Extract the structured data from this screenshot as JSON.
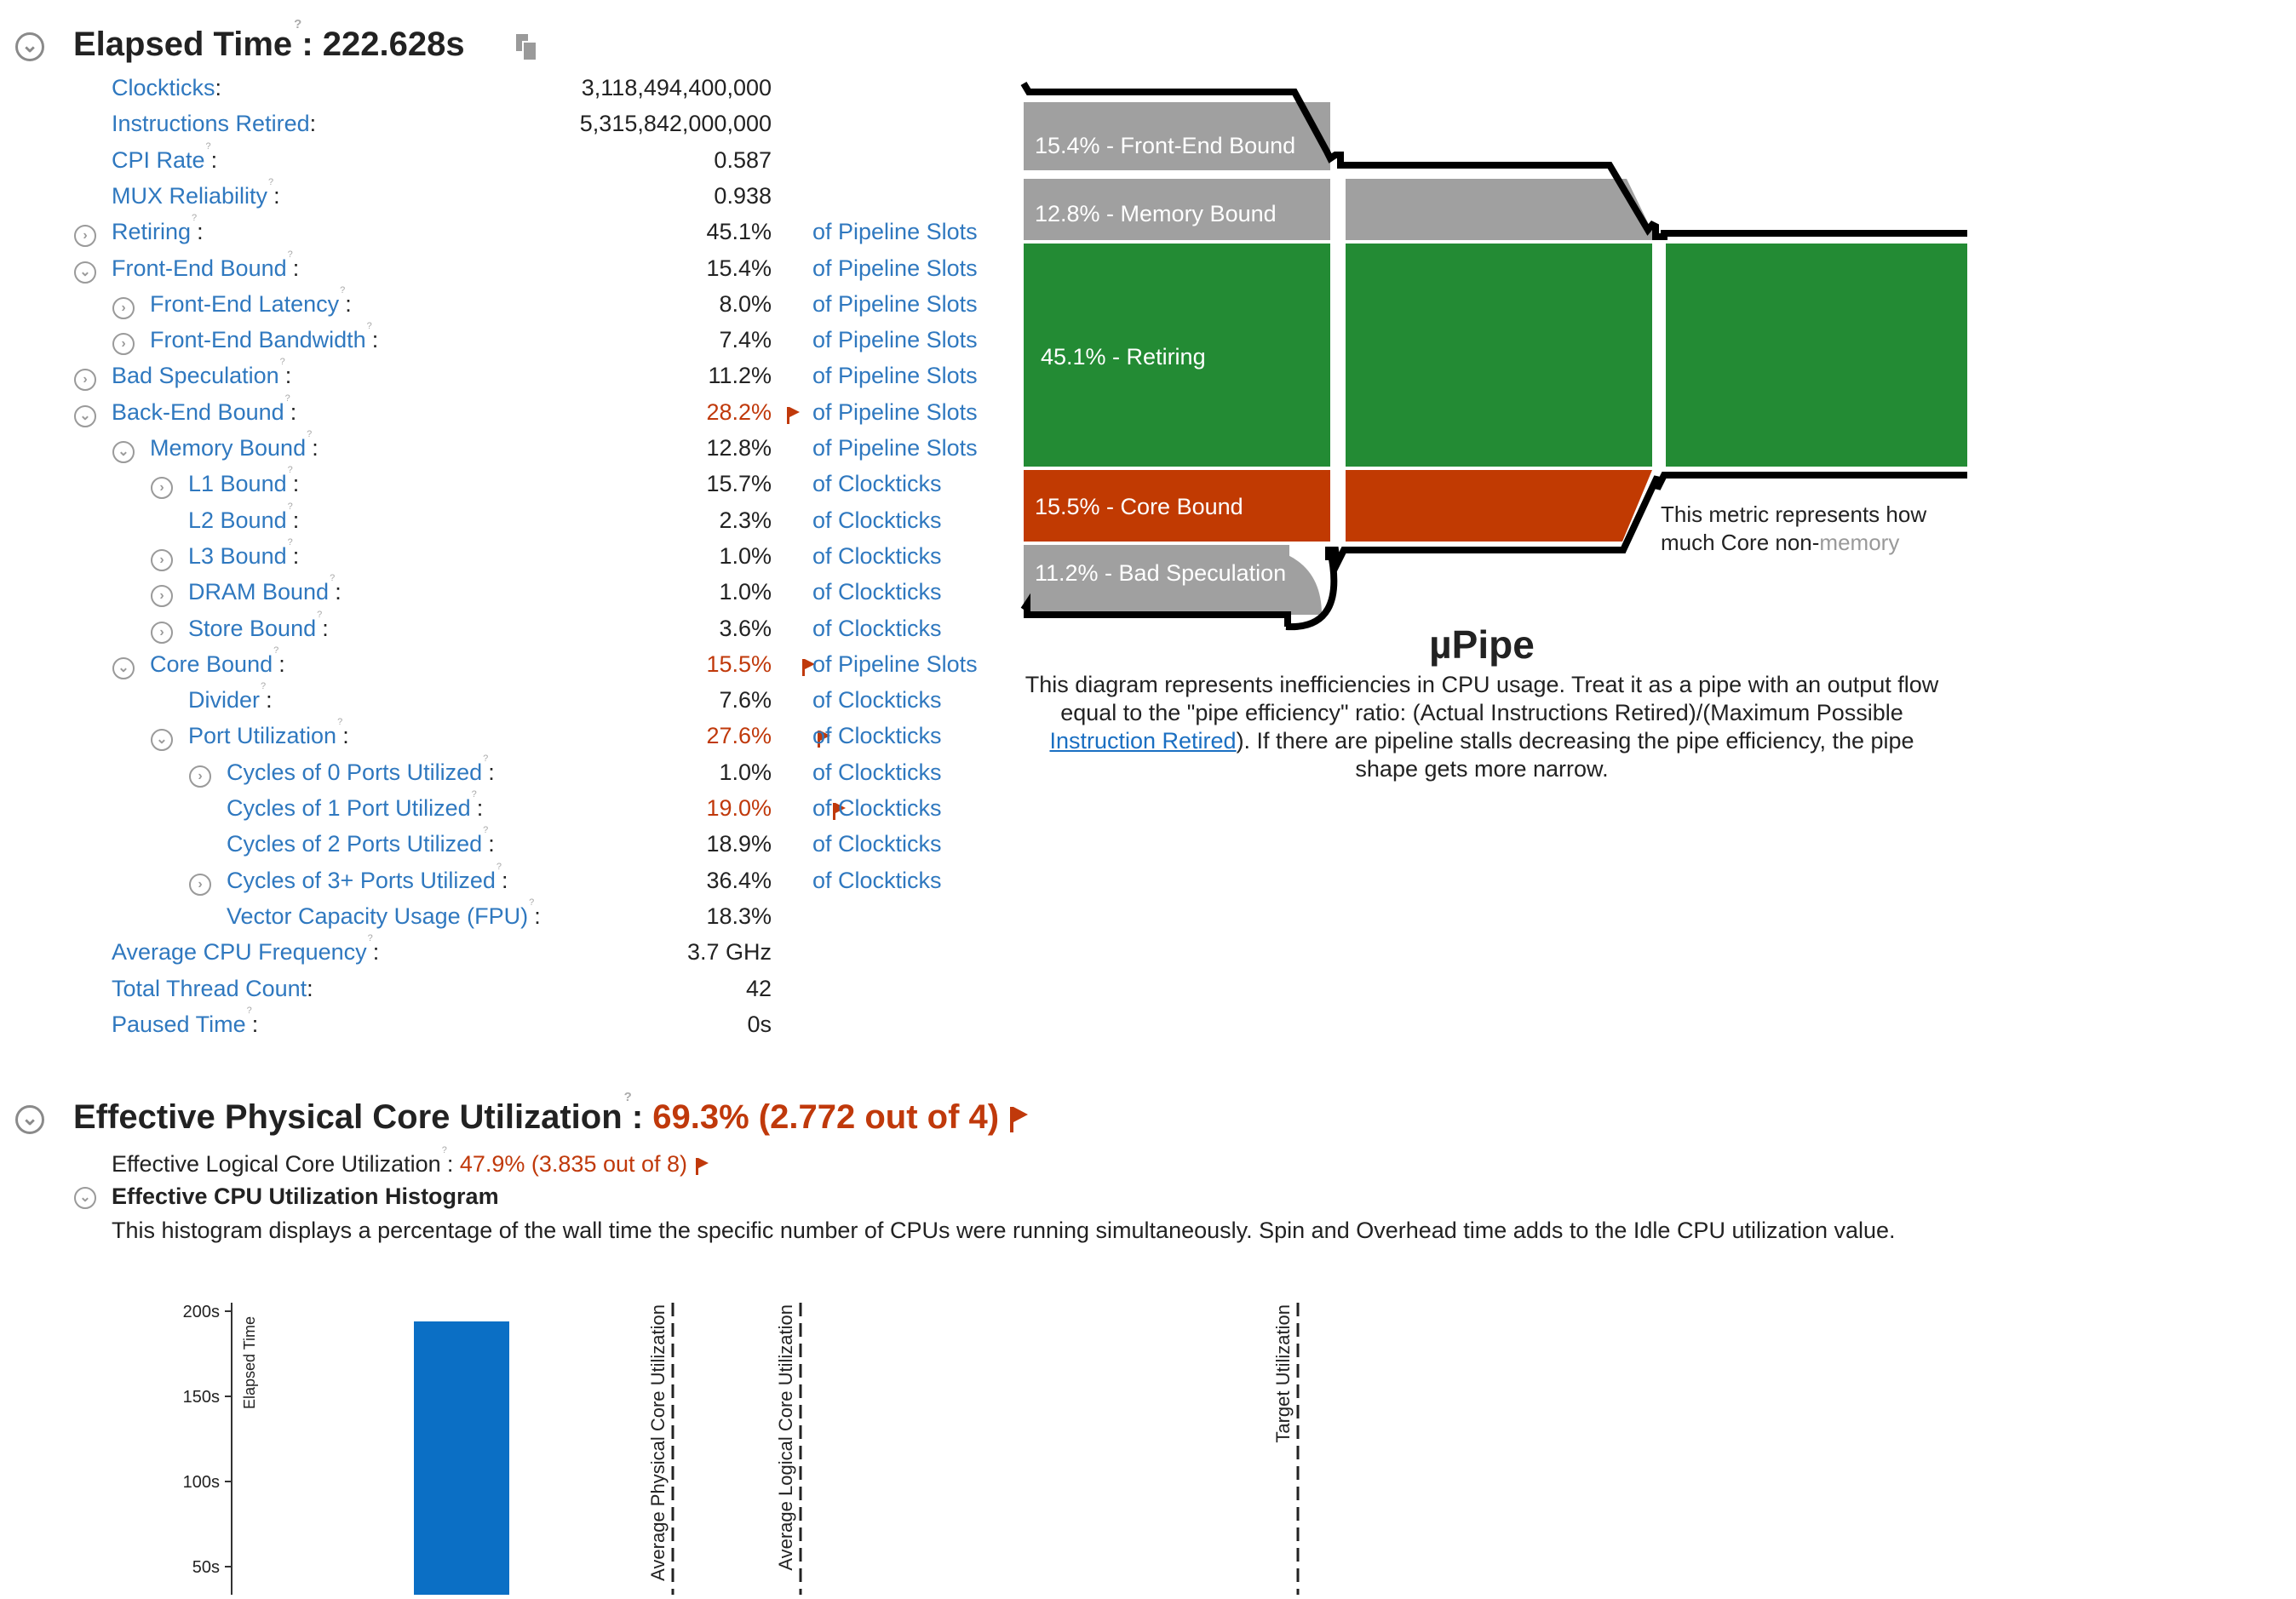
{
  "elapsed": {
    "title": "Elapsed Time",
    "sep": ":",
    "value": "222.628s",
    "hint": "?",
    "copy_icon": "copy-icon",
    "toggle": "chevron-down-icon"
  },
  "metrics": [
    {
      "label": "Clockticks",
      "value": "3,118,494,400,000",
      "unit": ""
    },
    {
      "label": "Instructions Retired",
      "value": "5,315,842,000,000",
      "unit": ""
    },
    {
      "label": "CPI Rate",
      "value": "0.587",
      "unit": ""
    },
    {
      "label": "MUX Reliability",
      "value": "0.938",
      "unit": ""
    },
    {
      "label": "Retiring",
      "value": "45.1%",
      "unit": "of Pipeline Slots"
    },
    {
      "label": "Front-End Bound",
      "value": "15.4%",
      "unit": "of Pipeline Slots"
    },
    {
      "label": "Front-End Latency",
      "value": "8.0%",
      "unit": "of Pipeline Slots"
    },
    {
      "label": "Front-End Bandwidth",
      "value": "7.4%",
      "unit": "of Pipeline Slots"
    },
    {
      "label": "Bad Speculation",
      "value": "11.2%",
      "unit": "of Pipeline Slots"
    },
    {
      "label": "Back-End Bound",
      "value": "28.2%",
      "unit": "of Pipeline Slots"
    },
    {
      "label": "Memory Bound",
      "value": "12.8%",
      "unit": "of Pipeline Slots"
    },
    {
      "label": "L1 Bound",
      "value": "15.7%",
      "unit": "of Clockticks"
    },
    {
      "label": "L2 Bound",
      "value": "2.3%",
      "unit": "of Clockticks"
    },
    {
      "label": "L3 Bound",
      "value": "1.0%",
      "unit": "of Clockticks"
    },
    {
      "label": "DRAM Bound",
      "value": "1.0%",
      "unit": "of Clockticks"
    },
    {
      "label": "Store Bound",
      "value": "3.6%",
      "unit": "of Clockticks"
    },
    {
      "label": "Core Bound",
      "value": "15.5%",
      "unit": "of Pipeline Slots"
    },
    {
      "label": "Divider",
      "value": "7.6%",
      "unit": "of Clockticks"
    },
    {
      "label": "Port Utilization",
      "value": "27.6%",
      "unit": "of Clockticks"
    },
    {
      "label": "Cycles of 0 Ports Utilized",
      "value": "1.0%",
      "unit": "of Clockticks"
    },
    {
      "label": "Cycles of 1 Port Utilized",
      "value": "19.0%",
      "unit": "of Clockticks"
    },
    {
      "label": "Cycles of 2 Ports Utilized",
      "value": "18.9%",
      "unit": "of Clockticks"
    },
    {
      "label": "Cycles of 3+ Ports Utilized",
      "value": "36.4%",
      "unit": "of Clockticks"
    },
    {
      "label": "Vector Capacity Usage (FPU)",
      "value": "18.3%",
      "unit": ""
    },
    {
      "label": "Average CPU Frequency",
      "value": "3.7 GHz",
      "unit": ""
    },
    {
      "label": "Total Thread Count",
      "value": "42",
      "unit": ""
    },
    {
      "label": "Paused Time",
      "value": "0s",
      "unit": ""
    }
  ],
  "upipe": {
    "labels": {
      "front_end": "15.4% - Front-End Bound",
      "memory": "12.8% - Memory Bound",
      "retiring": "45.1% - Retiring",
      "core": "15.5% - Core Bound",
      "bad_spec": "11.2% - Bad Speculation"
    },
    "tooltip_line1": "This metric represents how",
    "tooltip_line2a": "much Core non-",
    "tooltip_line2b": "memory",
    "title": "µPipe",
    "desc_1": "This diagram represents inefficiencies in CPU usage. Treat it as a pipe with an output flow",
    "desc_2": "equal to the \"pipe efficiency\" ratio: (Actual Instructions Retired)/(Maximum Possible",
    "desc_link": "Instruction Retired",
    "desc_3": "). If there are pipeline stalls decreasing the pipe efficiency, the pipe",
    "desc_4": "shape gets more narrow.",
    "colors": {
      "gray": "#a0a0a0",
      "green": "#238b34",
      "red": "#c13a02"
    }
  },
  "core_util": {
    "title": "Effective Physical Core Utilization",
    "sep": ":",
    "value": "69.3% (2.772 out of 4)",
    "logical_label": "Effective Logical Core Utilization",
    "logical_value": "47.9% (3.835 out of 8)",
    "histogram_title": "Effective CPU Utilization Histogram",
    "histogram_desc": "This histogram displays a percentage of the wall time the specific number of CPUs were running simultaneously. Spin and Overhead time adds to the Idle CPU utilization value."
  },
  "chart_data": {
    "type": "bar",
    "ylabel": "Elapsed Time",
    "yticks": [
      "200s",
      "150s",
      "100s",
      "50s"
    ],
    "ylim": [
      0,
      200
    ],
    "values": [
      194
    ],
    "bar_color": "#0b6fc5",
    "markers": [
      "Average Physical Core Utilization",
      "Average Logical Core Utilization",
      "Target Utilization"
    ]
  }
}
